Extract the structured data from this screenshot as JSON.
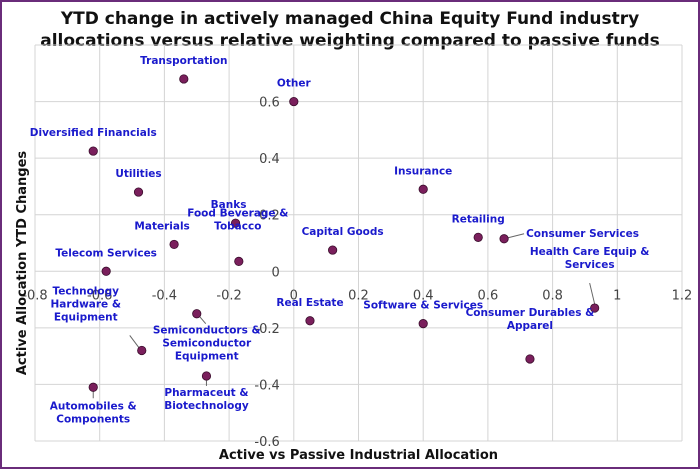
{
  "chart_data": {
    "type": "scatter",
    "title_lines": [
      "YTD change in actively managed China Equity Fund industry",
      "allocations versus relative weighting compared to passive funds"
    ],
    "xlabel": "Active vs Passive Industrial Allocation",
    "ylabel": "Active Allocation YTD Changes",
    "xlim": [
      -0.8,
      1.2
    ],
    "ylim": [
      -0.6,
      0.8
    ],
    "x_ticks": [
      -0.8,
      -0.6,
      -0.4,
      -0.2,
      0,
      0.2,
      0.4,
      0.6,
      0.8,
      1,
      1.2
    ],
    "x_tick_labels": [
      "-0.8",
      "-0.6",
      "-0.4",
      "-0.2",
      "0",
      "0.2",
      "0.4",
      "0.6",
      "0.8",
      "1",
      "1.2"
    ],
    "y_ticks": [
      -0.6,
      -0.4,
      -0.2,
      0,
      0.2,
      0.4,
      0.6
    ],
    "y_tick_labels": [
      "-0.6",
      "-0.4",
      "-0.2",
      "0",
      "0.2",
      "0.4",
      "0.6"
    ],
    "grid": true,
    "marker_color": "#7a1f5c",
    "label_color": "#1a1acc",
    "points": [
      {
        "label": [
          "Transportation"
        ],
        "x": -0.34,
        "y": 0.68
      },
      {
        "label": [
          "Other"
        ],
        "x": 0.0,
        "y": 0.6
      },
      {
        "label": [
          "Diversified Financials"
        ],
        "x": -0.62,
        "y": 0.425
      },
      {
        "label": [
          "Utilities"
        ],
        "x": -0.48,
        "y": 0.28
      },
      {
        "label": [
          "Insurance"
        ],
        "x": 0.4,
        "y": 0.29
      },
      {
        "label": [
          "Banks"
        ],
        "x": -0.18,
        "y": 0.17
      },
      {
        "label": [
          "Materials"
        ],
        "x": -0.37,
        "y": 0.095
      },
      {
        "label": [
          "Food Beverage &",
          "Tobacco"
        ],
        "x": -0.17,
        "y": 0.035
      },
      {
        "label": [
          "Capital Goods"
        ],
        "x": 0.12,
        "y": 0.075
      },
      {
        "label": [
          "Retailing"
        ],
        "x": 0.57,
        "y": 0.12
      },
      {
        "label": [
          "Consumer Services"
        ],
        "x": 0.65,
        "y": 0.115
      },
      {
        "label": [
          "Telecom Services"
        ],
        "x": -0.58,
        "y": 0.0
      },
      {
        "label": [
          "Health Care Equip &",
          "Services"
        ],
        "x": 0.93,
        "y": -0.13
      },
      {
        "label": [
          "Real Estate"
        ],
        "x": 0.05,
        "y": -0.175
      },
      {
        "label": [
          "Software & Services"
        ],
        "x": 0.4,
        "y": -0.185
      },
      {
        "label": [
          "Technology",
          "Hardware &",
          "Equipment"
        ],
        "x": -0.47,
        "y": -0.28
      },
      {
        "label": [
          "Semiconductors &",
          "Semiconductor",
          "Equipment"
        ],
        "x": -0.3,
        "y": -0.15
      },
      {
        "label": [
          "Consumer Durables &",
          "Apparel"
        ],
        "x": 0.73,
        "y": -0.31
      },
      {
        "label": [
          "Pharmaceut &",
          "Biotechnology"
        ],
        "x": -0.27,
        "y": -0.37
      },
      {
        "label": [
          "Automobiles &",
          "Components"
        ],
        "x": -0.62,
        "y": -0.41
      }
    ]
  }
}
